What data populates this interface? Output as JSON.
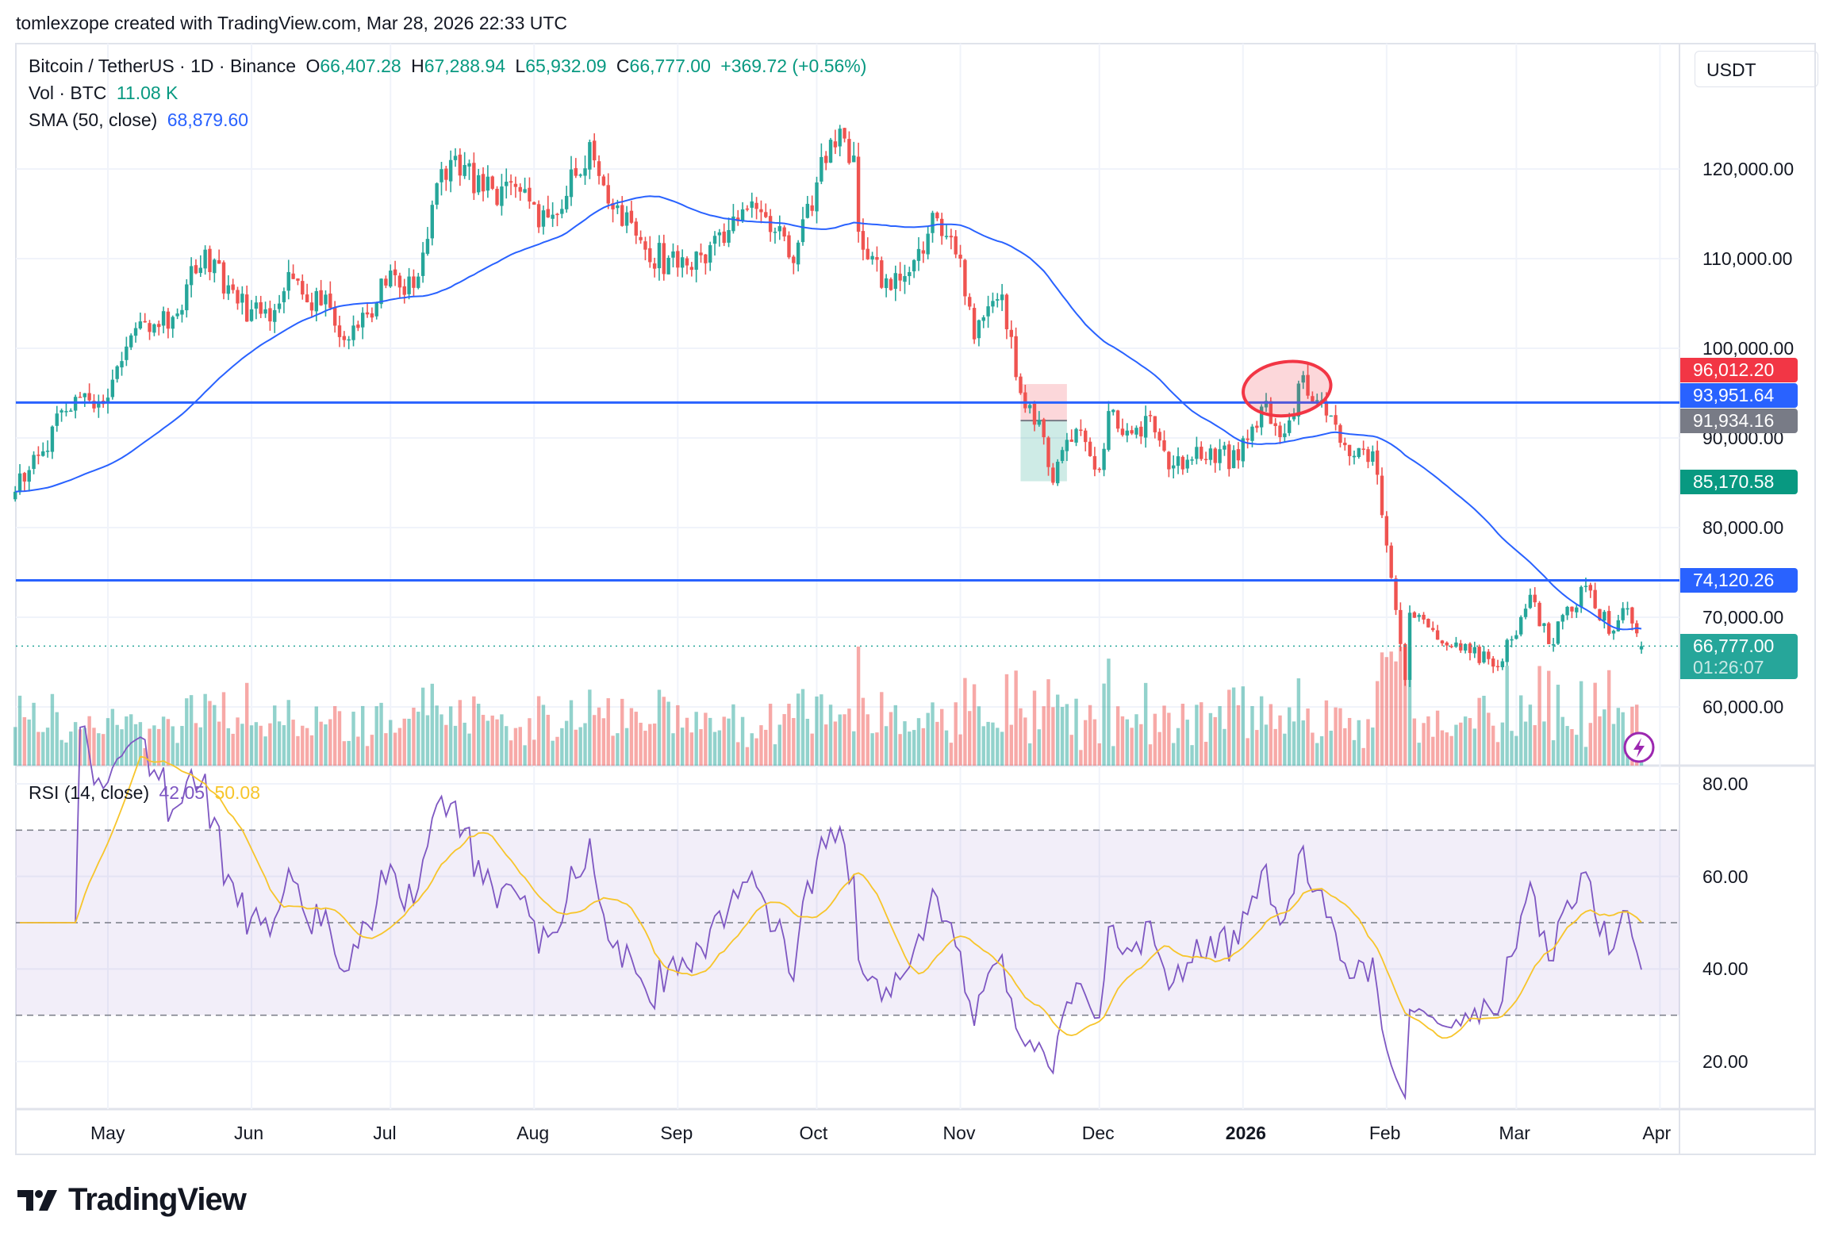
{
  "header": {
    "credit": "tomlexzope created with TradingView.com, Mar 28, 2026 22:33 UTC"
  },
  "legend": {
    "symbol": "Bitcoin / TetherUS · 1D · Binance",
    "o_label": "O",
    "o": "66,407.28",
    "h_label": "H",
    "h": "67,288.94",
    "l_label": "L",
    "l": "65,932.09",
    "c_label": "C",
    "c": "66,777.00",
    "change": "+369.72 (+0.56%)",
    "vol_label": "Vol · BTC",
    "vol": "11.08 K",
    "sma_label": "SMA (50, close)",
    "sma": "68,879.60",
    "rsi_label": "RSI (14, close)",
    "rsi": "42.05",
    "rsi_ma": "50.08"
  },
  "currency": "USDT",
  "price_labels": [
    {
      "text": "96,012.20",
      "value": 96012.2,
      "color": "#f23645"
    },
    {
      "text": "93,951.64",
      "value": 93951.64,
      "color": "#2962ff"
    },
    {
      "text": "91,934.16",
      "value": 91934.16,
      "color": "#787b86"
    },
    {
      "text": "85,170.58",
      "value": 85170.58,
      "color": "#089981"
    },
    {
      "text": "74,120.26",
      "value": 74120.26,
      "color": "#2962ff"
    }
  ],
  "last_price": {
    "text": "66,777.00",
    "countdown": "01:26:07",
    "value": 66777.0,
    "color": "#26a69a"
  },
  "logo": {
    "text": "TradingView"
  },
  "colors": {
    "up": "#26a69a",
    "down": "#ef5350",
    "sma": "#2962ff",
    "rsi": "#7e57c2",
    "rsi_ma": "#f7c52b",
    "hline": "#2962ff"
  },
  "chart_data": {
    "type": "candlestick",
    "title": "Bitcoin / TetherUS · 1D · Binance",
    "start_date": "2025-04-11",
    "end_date": "2026-03-28",
    "last_candle": {
      "open": 66407.28,
      "high": 67288.94,
      "low": 65932.09,
      "close": 66777.0
    },
    "close_anchors": [
      [
        "2025-04-11",
        84000
      ],
      [
        "2025-04-22",
        93000
      ],
      [
        "2025-05-01",
        94500
      ],
      [
        "2025-05-08",
        103000
      ],
      [
        "2025-05-15",
        103500
      ],
      [
        "2025-05-22",
        111000
      ],
      [
        "2025-05-29",
        105000
      ],
      [
        "2025-06-05",
        103000
      ],
      [
        "2025-06-09",
        108500
      ],
      [
        "2025-06-12",
        106000
      ],
      [
        "2025-06-18",
        104500
      ],
      [
        "2025-06-22",
        101000
      ],
      [
        "2025-06-30",
        107000
      ],
      [
        "2025-07-07",
        108000
      ],
      [
        "2025-07-10",
        116000
      ],
      [
        "2025-07-14",
        121000
      ],
      [
        "2025-07-21",
        117500
      ],
      [
        "2025-07-28",
        118000
      ],
      [
        "2025-08-02",
        113500
      ],
      [
        "2025-08-08",
        117000
      ],
      [
        "2025-08-13",
        123000
      ],
      [
        "2025-08-18",
        115500
      ],
      [
        "2025-08-25",
        111000
      ],
      [
        "2025-09-01",
        109000
      ],
      [
        "2025-09-08",
        111500
      ],
      [
        "2025-09-15",
        115500
      ],
      [
        "2025-09-22",
        113000
      ],
      [
        "2025-09-26",
        109500
      ],
      [
        "2025-10-01",
        118500
      ],
      [
        "2025-10-06",
        124500
      ],
      [
        "2025-10-09",
        121500
      ],
      [
        "2025-10-10",
        113000
      ],
      [
        "2025-10-17",
        106500
      ],
      [
        "2025-10-21",
        108500
      ],
      [
        "2025-10-27",
        114500
      ],
      [
        "2025-11-01",
        110000
      ],
      [
        "2025-11-04",
        101000
      ],
      [
        "2025-11-10",
        106000
      ],
      [
        "2025-11-14",
        95000
      ],
      [
        "2025-11-18",
        92000
      ],
      [
        "2025-11-21",
        85000
      ],
      [
        "2025-11-26",
        91000
      ],
      [
        "2025-12-01",
        86500
      ],
      [
        "2025-12-03",
        93000
      ],
      [
        "2025-12-08",
        90500
      ],
      [
        "2025-12-12",
        92500
      ],
      [
        "2025-12-16",
        86500
      ],
      [
        "2025-12-22",
        89000
      ],
      [
        "2025-12-31",
        87500
      ],
      [
        "2026-01-05",
        93500
      ],
      [
        "2026-01-10",
        90500
      ],
      [
        "2026-01-14",
        97000
      ],
      [
        "2026-01-19",
        92500
      ],
      [
        "2026-01-25",
        88000
      ],
      [
        "2026-01-29",
        88500
      ],
      [
        "2026-02-01",
        78000
      ],
      [
        "2026-02-05",
        63000
      ],
      [
        "2026-02-06",
        70500
      ],
      [
        "2026-02-12",
        67500
      ],
      [
        "2026-02-18",
        67000
      ],
      [
        "2026-02-24",
        64500
      ],
      [
        "2026-03-01",
        68000
      ],
      [
        "2026-03-04",
        72500
      ],
      [
        "2026-03-08",
        67000
      ],
      [
        "2026-03-16",
        73500
      ],
      [
        "2026-03-18",
        71000
      ],
      [
        "2026-03-22",
        68500
      ],
      [
        "2026-03-25",
        71000
      ],
      [
        "2026-03-28",
        66777
      ]
    ],
    "price_axis": {
      "min": 52500,
      "max": 126500,
      "ticks": [
        {
          "value": 120000,
          "label": "120,000.00"
        },
        {
          "value": 110000,
          "label": "110,000.00"
        },
        {
          "value": 100000,
          "label": "100,000.00"
        },
        {
          "value": 90000,
          "label": "90,000.00"
        },
        {
          "value": 80000,
          "label": "80,000.00"
        },
        {
          "value": 70000,
          "label": "70,000.00"
        },
        {
          "value": 60000,
          "label": "60,000.00"
        }
      ]
    },
    "rsi_axis": {
      "ticks": [
        {
          "value": 80,
          "label": "80.00"
        },
        {
          "value": 60,
          "label": "60.00"
        },
        {
          "value": 40,
          "label": "40.00"
        },
        {
          "value": 20,
          "label": "20.00"
        }
      ],
      "bands": [
        70,
        50,
        30
      ]
    },
    "time_axis": [
      {
        "date": "2025-05-01",
        "label": "May"
      },
      {
        "date": "2025-06-01",
        "label": "Jun"
      },
      {
        "date": "2025-07-01",
        "label": "Jul"
      },
      {
        "date": "2025-08-01",
        "label": "Aug"
      },
      {
        "date": "2025-09-01",
        "label": "Sep"
      },
      {
        "date": "2025-10-01",
        "label": "Oct"
      },
      {
        "date": "2025-11-01",
        "label": "Nov"
      },
      {
        "date": "2025-12-01",
        "label": "Dec"
      },
      {
        "date": "2026-01-01",
        "label": "2026",
        "bold": true
      },
      {
        "date": "2026-02-01",
        "label": "Feb"
      },
      {
        "date": "2026-03-01",
        "label": "Mar"
      },
      {
        "date": "2026-04-01",
        "label": "Apr"
      }
    ],
    "indicators": {
      "sma_period": 50,
      "rsi_period": 14,
      "rsi_ma_period": 14
    },
    "drawings": {
      "horizontal_lines": [
        93951.64,
        74120.26
      ],
      "ellipse": {
        "from": "2026-01-01",
        "to": "2026-01-20",
        "price_top": 98500,
        "price_bottom": 92500
      },
      "long_position": {
        "from": "2025-11-14",
        "to": "2025-11-24",
        "stop": 96012.2,
        "entry": 91934.16,
        "target": 85170.58
      }
    }
  }
}
